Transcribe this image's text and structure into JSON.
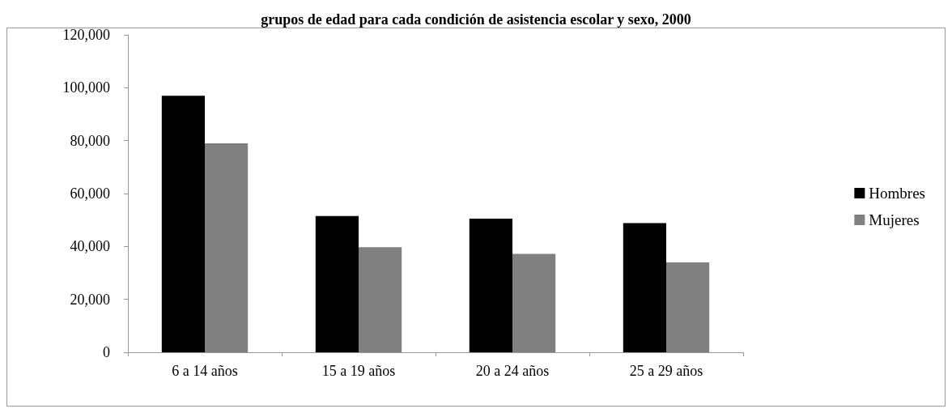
{
  "chart_data": {
    "type": "bar",
    "title": "grupos de edad para cada condición de asistencia escolar y sexo, 2000",
    "categories": [
      "6 a 14 años",
      "15 a 19 años",
      "20 a 24 años",
      "25 a 29 años"
    ],
    "series": [
      {
        "name": "Hombres",
        "color": "#000000",
        "values": [
          97000,
          51500,
          50500,
          48800
        ]
      },
      {
        "name": "Mujeres",
        "color": "#808080",
        "values": [
          79000,
          39700,
          37200,
          34000
        ]
      }
    ],
    "ylim": [
      0,
      120000
    ],
    "yticks": [
      0,
      {
        "value": 20000,
        "label": "20,000"
      },
      {
        "value": 40000,
        "label": "40,000"
      },
      {
        "value": 60000,
        "label": "60,000"
      },
      {
        "value": 80000,
        "label": "80,000"
      },
      {
        "value": 100000,
        "label": "100,000"
      },
      {
        "value": 120000,
        "label": "120,000"
      }
    ],
    "grid": false,
    "legend": "right"
  }
}
